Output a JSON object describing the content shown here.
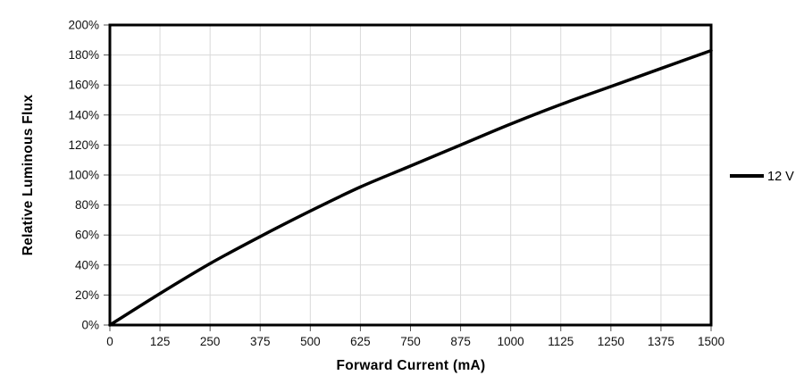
{
  "chart_data": {
    "type": "line",
    "xlabel": "Forward Current (mA)",
    "ylabel": "Relative Luminous Flux",
    "xlim": [
      0,
      1500
    ],
    "ylim": [
      0,
      200
    ],
    "x_ticks": [
      0,
      125,
      250,
      375,
      500,
      625,
      750,
      875,
      1000,
      1125,
      1250,
      1375,
      1500
    ],
    "x_tick_labels": [
      "0",
      "125",
      "250",
      "375",
      "500",
      "625",
      "750",
      "875",
      "1000",
      "1125",
      "1250",
      "1375",
      "1500"
    ],
    "y_ticks": [
      0,
      20,
      40,
      60,
      80,
      100,
      120,
      140,
      160,
      180,
      200
    ],
    "y_tick_labels": [
      "0%",
      "20%",
      "40%",
      "60%",
      "80%",
      "100%",
      "120%",
      "140%",
      "160%",
      "180%",
      "200%"
    ],
    "grid": true,
    "legend_position": "right",
    "series": [
      {
        "name": "12 V",
        "color": "#000000",
        "x": [
          0,
          125,
          250,
          375,
          500,
          625,
          750,
          875,
          1000,
          1125,
          1250,
          1375,
          1500
        ],
        "values": [
          0,
          21,
          41,
          59,
          76,
          92,
          106,
          120,
          134,
          147,
          159,
          171,
          183
        ]
      }
    ],
    "colors": {
      "line": "#000000",
      "grid": "#d9d9d9",
      "border": "#000000",
      "tick": "#555555",
      "text": "#000000",
      "background": "#ffffff"
    }
  }
}
